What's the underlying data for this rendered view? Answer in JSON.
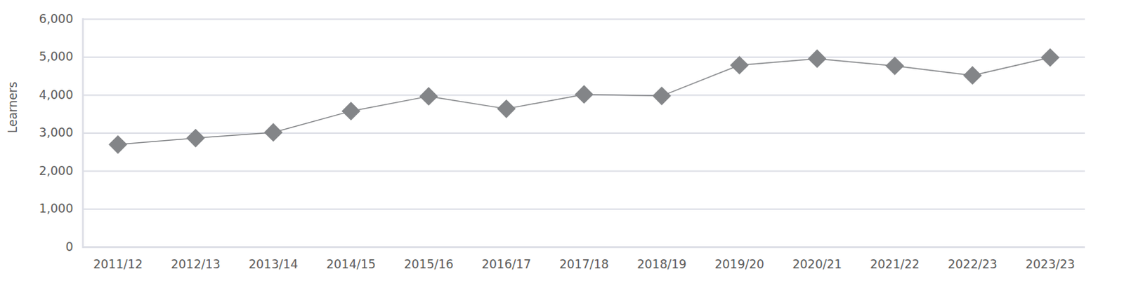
{
  "chart_data": {
    "type": "line",
    "y_label": "Learners",
    "categories": [
      "2011/12",
      "2012/13",
      "2013/14",
      "2014/15",
      "2015/16",
      "2016/17",
      "2017/18",
      "2018/19",
      "2019/20",
      "2020/21",
      "2021/22",
      "2022/23",
      "2023/23"
    ],
    "values": [
      2700,
      2870,
      3020,
      3580,
      3970,
      3640,
      4020,
      3980,
      4790,
      4960,
      4770,
      4520,
      4990
    ],
    "color": "#838588",
    "marker": "diamond",
    "ylim": [
      0,
      6000
    ],
    "yticks": [
      0,
      {
        "value": 1000,
        "label": "1,000"
      },
      {
        "value": 2000,
        "label": "2,000"
      },
      {
        "value": 3000,
        "label": "3,000"
      },
      {
        "value": 4000,
        "label": "4,000"
      },
      {
        "value": 5000,
        "label": "5,000"
      },
      {
        "value": 6000,
        "label": "6,000"
      }
    ],
    "grid": true
  }
}
